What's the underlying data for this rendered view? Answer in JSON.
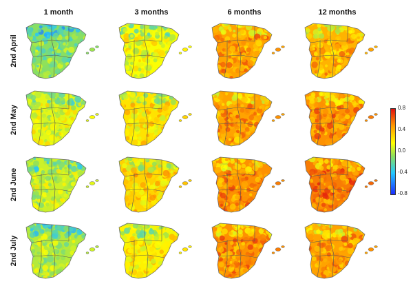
{
  "columns": [
    "1 month",
    "3 months",
    "6 months",
    "12 months"
  ],
  "rows": [
    "2nd April",
    "2nd May",
    "2nd June",
    "2nd July"
  ],
  "colorbar": {
    "min": -0.8,
    "max": 0.8,
    "ticks": [
      "0.8",
      "0.4",
      "0.0",
      "-0.4",
      "-0.8"
    ]
  },
  "chart_data": {
    "type": "heatmap",
    "description_values": "approximate mean value per map (row x column)",
    "values": [
      [
        -0.1,
        0.15,
        0.45,
        0.4
      ],
      [
        0.1,
        0.25,
        0.45,
        0.5
      ],
      [
        0.05,
        0.3,
        0.5,
        0.55
      ],
      [
        0.0,
        0.2,
        0.5,
        0.45
      ]
    ]
  }
}
